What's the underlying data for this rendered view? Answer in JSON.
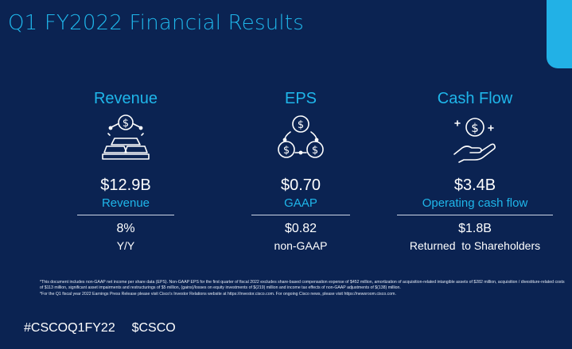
{
  "title": "Q1 FY2022 Financial Results",
  "columns": {
    "revenue": {
      "heading": "Revenue",
      "icon": "money-gold-bars-icon",
      "value": "$12.9B",
      "label": "Revenue",
      "value2": "8%",
      "label2": "Y/Y"
    },
    "eps": {
      "heading": "EPS",
      "icon": "coins-cycle-icon",
      "value": "$0.70",
      "label": "GAAP",
      "value2": "$0.82",
      "label2": "non-GAAP"
    },
    "cash": {
      "heading": "Cash Flow",
      "icon": "hand-coin-icon",
      "value": "$3.4B",
      "label": "Operating cash flow",
      "value2": "$1.8B",
      "label2": "Returned  to Shareholders"
    }
  },
  "footnotes": [
    "*This document includes non-GAAP net income per share data (EPS). Non-GAAP EPS for the first quarter of fiscal 2022  excludes share-based compensation expense of $452 million, amortization of acquisition-related intangible assets of $282  million, acquisition / divestiture-related costs of $113  million, significant asset impairments and restructurings of $5 million, (gains)/losses on equity investments of $(219) million and income tax effects of non-GAAP adjustments of $(138) million.",
    "*For the Q1 fiscal year 2022 Earnings Press Release please visit Cisco's Investor Relations website at https://investor.cisco.com. For ongoing Cisco news, please visit https://newsroom.cisco.com."
  ],
  "hashtags": "#CSCOQ1FY22  $CSCO",
  "colors": {
    "background": "#0b2352",
    "accent": "#1fb6ea",
    "text": "#ffffff"
  }
}
